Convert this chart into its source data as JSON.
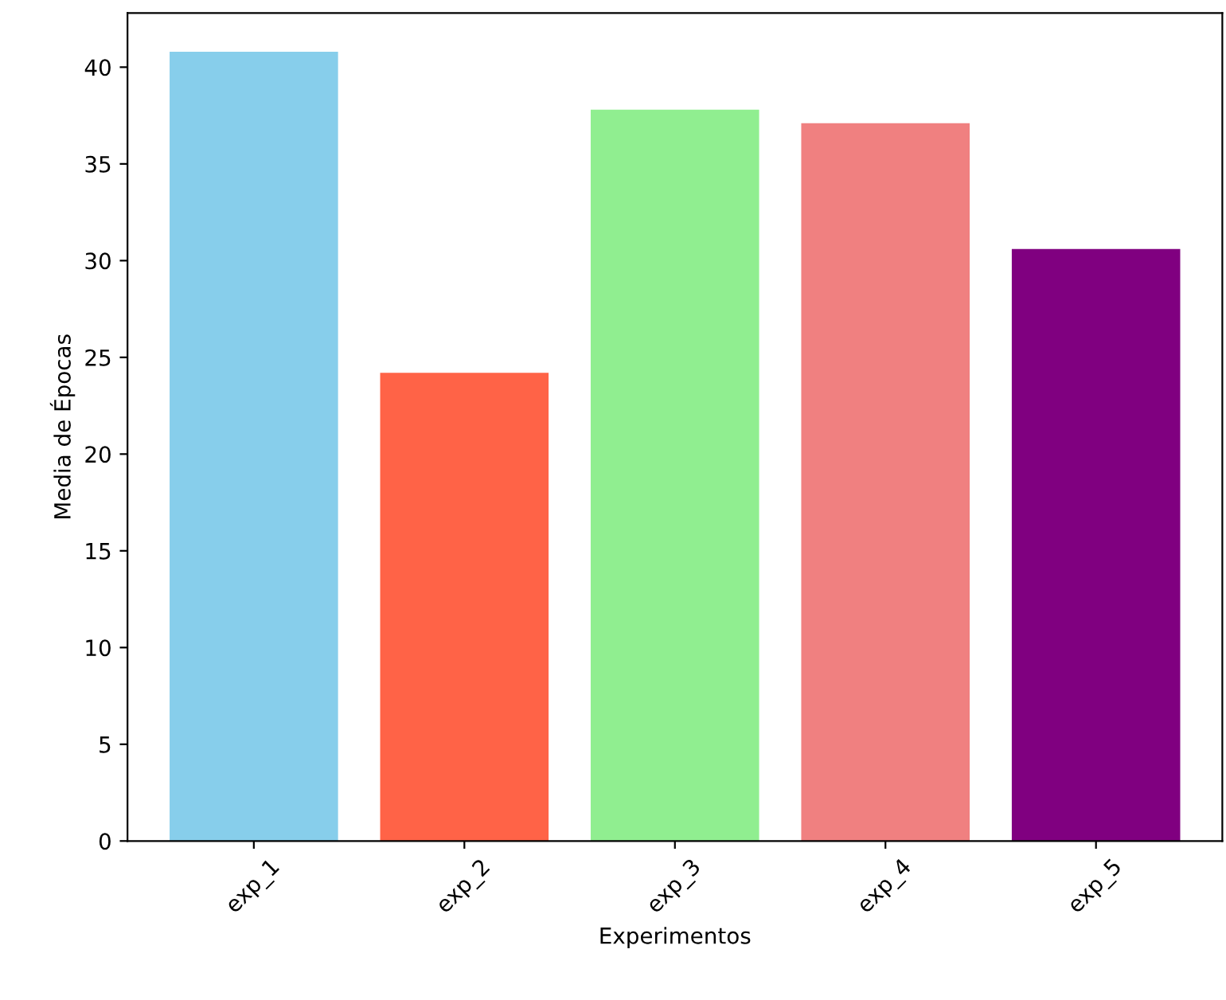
{
  "chart_data": {
    "type": "bar",
    "xlabel": "Experimentos",
    "ylabel": "Media de Épocas",
    "categories": [
      "exp_1",
      "exp_2",
      "exp_3",
      "exp_4",
      "exp_5"
    ],
    "values": [
      40.8,
      24.2,
      37.8,
      37.1,
      30.6
    ],
    "colors": [
      "#87ceeb",
      "#ff6347",
      "#90ee90",
      "#f08080",
      "#800080"
    ],
    "ylim": [
      0,
      42.8
    ],
    "yticks": [
      0,
      5,
      10,
      15,
      20,
      25,
      30,
      35,
      40
    ],
    "grid": false
  }
}
